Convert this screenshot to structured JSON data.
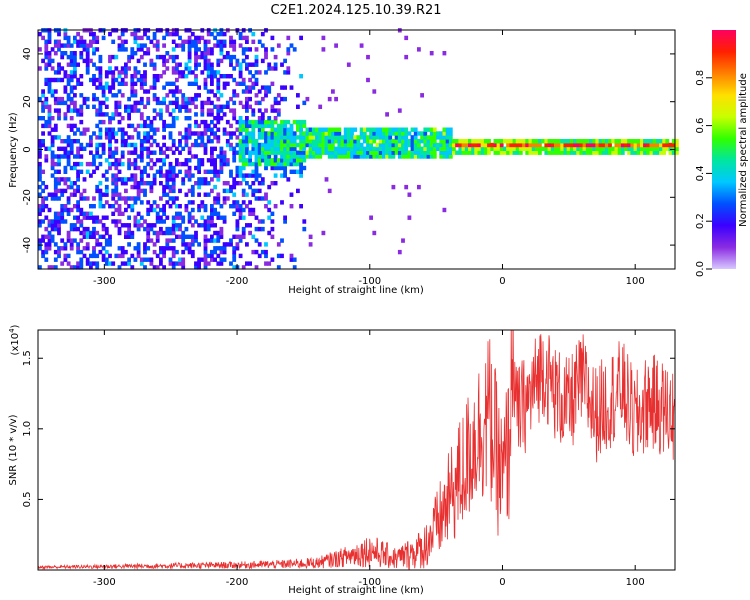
{
  "title": "C2E1.2024.125.10.39.R21",
  "colors": {
    "line": "#e83030",
    "axis": "#000000",
    "background": "#ffffff"
  },
  "chart_data": [
    {
      "type": "heatmap",
      "xlabel": "Height of straight line (km)",
      "ylabel": "Frequency (Hz)",
      "xlim": [
        -350,
        130
      ],
      "ylim": [
        -50,
        50
      ],
      "x_ticks": [
        -300,
        -200,
        -100,
        0,
        100
      ],
      "y_ticks": [
        -40,
        -20,
        0,
        20,
        40
      ],
      "colorbar": {
        "label": "Normalized spectral amplitude",
        "range": [
          0,
          1
        ],
        "ticks": [
          "0.0",
          "0.2",
          "0.4",
          "0.6",
          "0.8"
        ],
        "colormap": [
          "#d8c8ff",
          "#8a2be2",
          "#3b00ff",
          "#0050ff",
          "#00c8ff",
          "#00e6a0",
          "#30ff00",
          "#c8ff00",
          "#ffe000",
          "#ff8000",
          "#ff2000",
          "#ff0060"
        ]
      },
      "features": [
        {
          "region": "noise",
          "x_range": [
            -350,
            -150
          ],
          "freq_range": [
            -50,
            50
          ],
          "amplitude": 0.1
        },
        {
          "region": "spectral-band",
          "x_range": [
            -200,
            -40
          ],
          "freq_center": 0,
          "half_width": 6,
          "amplitude": 0.3
        },
        {
          "region": "spectral-band",
          "x_range": [
            -40,
            130
          ],
          "freq_center": 0,
          "half_width": 3,
          "amplitude": 0.9
        }
      ]
    },
    {
      "type": "line",
      "xlabel": "Height of straight line (km)",
      "ylabel": "SNR (10 * v/v)",
      "y_multiplier": "(x10",
      "y_multiplier_exp": "4",
      "y_multiplier_close": ")",
      "xlim": [
        -350,
        130
      ],
      "ylim": [
        0,
        17000
      ],
      "x_ticks": [
        -300,
        -200,
        -100,
        0,
        100
      ],
      "y_ticks": [
        {
          "value": 5000,
          "label": "0.5"
        },
        {
          "value": 10000,
          "label": "1.0"
        },
        {
          "value": 15000,
          "label": "1.5"
        }
      ],
      "series": [
        {
          "x": [
            -350,
            -300,
            -250,
            -200,
            -170,
            -140,
            -120,
            -100,
            -80,
            -60,
            -50,
            -40,
            -30,
            -20,
            -10,
            0,
            5,
            8,
            10,
            20,
            30,
            40,
            50,
            60,
            70,
            80,
            90,
            100,
            110,
            120,
            130
          ],
          "y": [
            200,
            250,
            300,
            350,
            400,
            500,
            900,
            1400,
            800,
            1500,
            3000,
            5000,
            7000,
            9500,
            11000,
            6000,
            9000,
            16500,
            11000,
            12000,
            14500,
            12500,
            11500,
            13500,
            11000,
            12000,
            13000,
            10500,
            12000,
            11500,
            11000
          ],
          "noise": [
            100,
            150,
            200,
            250,
            300,
            400,
            700,
            1200,
            800,
            1500,
            2500,
            3500,
            4500,
            5000,
            6000,
            5000,
            6000,
            5000,
            3500,
            3500,
            3500,
            3500,
            3500,
            3500,
            3500,
            3500,
            3500,
            3500,
            3500,
            3500,
            3500
          ]
        }
      ]
    }
  ]
}
